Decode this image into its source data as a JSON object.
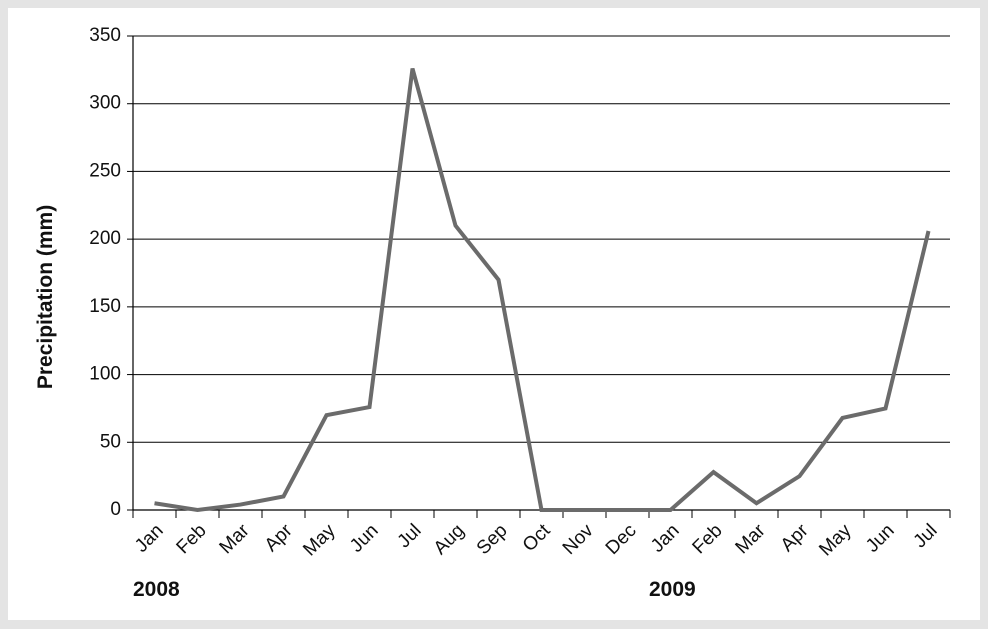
{
  "chart_data": {
    "type": "line",
    "y_label": "Precipitation (mm)",
    "categories": [
      "Jan",
      "Feb",
      "Mar",
      "Apr",
      "May",
      "Jun",
      "Jul",
      "Aug",
      "Sep",
      "Oct",
      "Nov",
      "Dec",
      "Jan",
      "Feb",
      "Mar",
      "Apr",
      "May",
      "Jun",
      "Jul"
    ],
    "year_labels": [
      "2008",
      "2009"
    ],
    "series": [
      {
        "color": "#6b6b6b",
        "values": [
          5,
          0,
          4,
          10,
          70,
          76,
          326,
          210,
          170,
          0,
          0,
          0,
          0,
          28,
          5,
          25,
          68,
          75,
          206
        ]
      }
    ],
    "ylim": [
      0,
      350
    ],
    "yticks": [
      0,
      50,
      100,
      150,
      200,
      250,
      300,
      350
    ],
    "grid": true
  }
}
